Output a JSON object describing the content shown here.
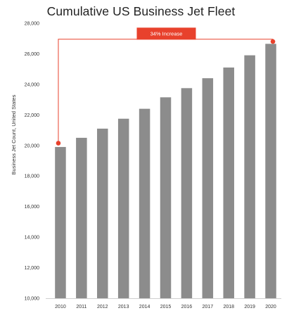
{
  "chart_data": {
    "type": "bar",
    "title": "Cumulative  US  Business  Jet  Fleet",
    "xlabel": "",
    "ylabel": "Business Jet Count, United States",
    "ylim": [
      10000,
      28000
    ],
    "yticks": [
      "10,000",
      "12,000",
      "14,000",
      "16,000",
      "18,000",
      "20,000",
      "22,000",
      "24,000",
      "26,000",
      "28,000"
    ],
    "ytick_values": [
      10000,
      12000,
      14000,
      16000,
      18000,
      20000,
      22000,
      24000,
      26000,
      28000
    ],
    "categories": [
      "2010",
      "2011",
      "2012",
      "2013",
      "2014",
      "2015",
      "2016",
      "2017",
      "2018",
      "2019",
      "2020"
    ],
    "values": [
      19900,
      20500,
      21100,
      21750,
      22400,
      23150,
      23750,
      24400,
      25100,
      25900,
      26650
    ],
    "grid": false,
    "annotation": {
      "text": "34% Increase",
      "from_category": "2010",
      "to_category": "2020",
      "from_value": 20150,
      "to_value": 26800,
      "bracket_value": 26950
    },
    "colors": {
      "bar": "#8c8c8c",
      "accent": "#e8412c",
      "axis": "#cfcfcf",
      "text": "#333333"
    }
  }
}
